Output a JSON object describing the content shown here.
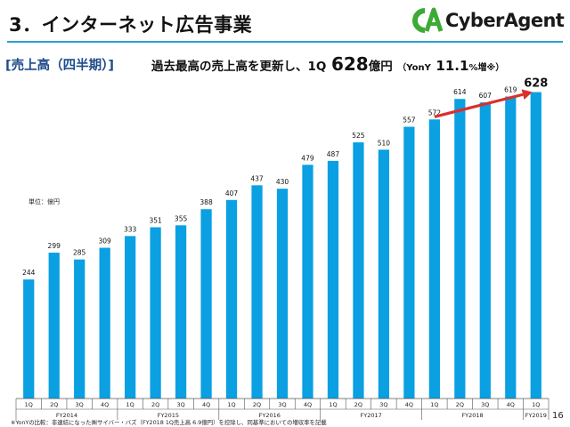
{
  "header": {
    "title": "3．インターネット広告事業",
    "subtitle": "[売上高（四半期）]",
    "summary_prefix": "過去最高の売上高を更新し、1Q",
    "summary_value": "628",
    "summary_unit": "億円",
    "summary_yoy_label": "（YonY",
    "summary_yoy_value": "11.1",
    "summary_yoy_suffix": "%増",
    "summary_yoy_mark": "※",
    "summary_close": "）"
  },
  "logo": {
    "text": "CyberAgent",
    "icon": "ca-logo-icon",
    "color": "#3daa35"
  },
  "colors": {
    "bar": "#0aa0e2",
    "arrow": "#d9302c",
    "rule": "#2a9fd8"
  },
  "unit_label": "単位：億円",
  "chart_data": {
    "type": "bar",
    "categories": [
      "1Q",
      "2Q",
      "3Q",
      "4Q",
      "1Q",
      "2Q",
      "3Q",
      "4Q",
      "1Q",
      "2Q",
      "3Q",
      "4Q",
      "1Q",
      "2Q",
      "3Q",
      "4Q",
      "1Q",
      "2Q",
      "3Q",
      "4Q",
      "1Q"
    ],
    "values": [
      244,
      299,
      285,
      309,
      333,
      351,
      355,
      388,
      407,
      437,
      430,
      479,
      487,
      525,
      510,
      557,
      572,
      614,
      607,
      619,
      628
    ],
    "value_labels": [
      "244",
      "299",
      "285",
      "309",
      "333",
      "351",
      "355",
      "388",
      "407",
      "437",
      "430",
      "479",
      "487",
      "525",
      "510",
      "557",
      "572",
      "614",
      "607",
      "619",
      "628"
    ],
    "groups": [
      {
        "name": "FY2014",
        "start": 0,
        "count": 4
      },
      {
        "name": "FY2015",
        "start": 4,
        "count": 4
      },
      {
        "name": "FY2016",
        "start": 8,
        "count": 4
      },
      {
        "name": "FY2017",
        "start": 12,
        "count": 4
      },
      {
        "name": "FY2018",
        "start": 16,
        "count": 4
      },
      {
        "name": "FY2019",
        "start": 20,
        "count": 1
      }
    ],
    "ylim": [
      0,
      660
    ],
    "highlight_arrow": {
      "from_index": 16,
      "to_index": 20
    },
    "grid": false
  },
  "footnote": "※YonYの比較：非連結になった㈱サイバー・バズ（FY2018 1Q売上高 6.9億円）を控除し、同基準においての増収率を記載",
  "page_number": "16"
}
